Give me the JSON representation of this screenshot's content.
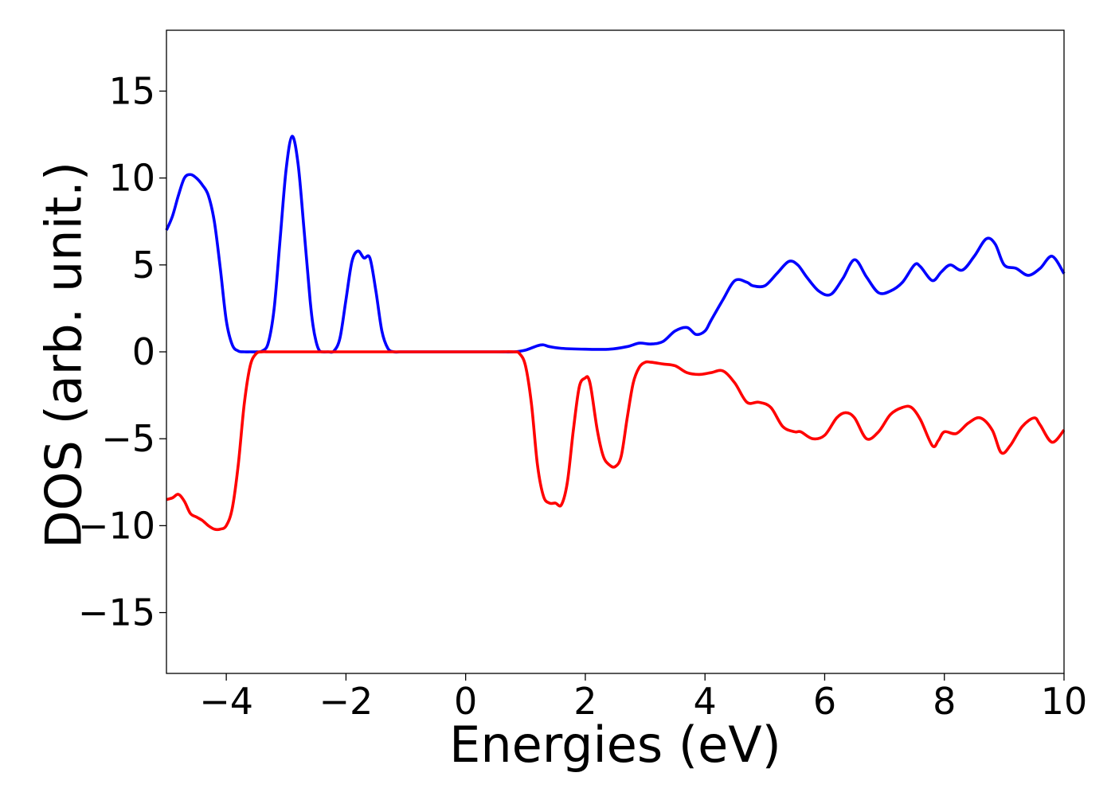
{
  "chart_data": {
    "type": "line",
    "title": "",
    "xlabel": "Energies (eV)",
    "ylabel": "DOS (arb. unit.)",
    "xlim": [
      -5,
      10
    ],
    "ylim": [
      -18.5,
      18.5
    ],
    "x_ticks": [
      -4,
      -2,
      0,
      2,
      4,
      6,
      8,
      10
    ],
    "x_tick_labels": [
      "−4",
      "−2",
      "0",
      "2",
      "4",
      "6",
      "8",
      "10"
    ],
    "y_ticks": [
      -15,
      -10,
      -5,
      0,
      5,
      10,
      15
    ],
    "y_tick_labels": [
      "−15",
      "−10",
      "−5",
      "0",
      "5",
      "10",
      "15"
    ],
    "grid": false,
    "legend": "none",
    "series": [
      {
        "color": "#0000ff",
        "x": [
          -5.0,
          -4.9,
          -4.8,
          -4.7,
          -4.6,
          -4.5,
          -4.4,
          -4.3,
          -4.2,
          -4.1,
          -4.0,
          -3.9,
          -3.8,
          -3.7,
          -3.6,
          -3.5,
          -3.4,
          -3.3,
          -3.2,
          -3.1,
          -3.0,
          -2.9,
          -2.8,
          -2.7,
          -2.6,
          -2.55,
          -2.5,
          -2.45,
          -2.4,
          -2.3,
          -2.2,
          -2.1,
          -2.0,
          -1.9,
          -1.8,
          -1.7,
          -1.6,
          -1.5,
          -1.4,
          -1.3,
          -1.2,
          -1.1,
          -1.0,
          -0.9,
          -0.8,
          -0.7,
          -0.6,
          -0.5,
          -0.4,
          0.0,
          0.5,
          0.8,
          1.0,
          1.2,
          1.3,
          1.4,
          1.6,
          2.0,
          2.4,
          2.7,
          2.9,
          3.1,
          3.3,
          3.5,
          3.7,
          3.85,
          4.0,
          4.1,
          4.3,
          4.5,
          4.7,
          4.8,
          5.0,
          5.2,
          5.4,
          5.55,
          5.7,
          5.9,
          6.1,
          6.3,
          6.5,
          6.7,
          6.9,
          7.1,
          7.3,
          7.5,
          7.6,
          7.8,
          7.95,
          8.1,
          8.3,
          8.5,
          8.7,
          8.85,
          9.0,
          9.2,
          9.4,
          9.6,
          9.8,
          10.0
        ],
        "y": [
          7.0,
          7.8,
          9.0,
          10.0,
          10.2,
          10.0,
          9.6,
          9.0,
          7.5,
          4.8,
          1.8,
          0.4,
          0.05,
          0.0,
          0.0,
          0.0,
          0.05,
          0.5,
          2.5,
          6.5,
          10.5,
          12.4,
          10.8,
          7.0,
          3.0,
          1.5,
          0.6,
          0.1,
          0.0,
          0.0,
          0.05,
          0.8,
          3.0,
          5.2,
          5.8,
          5.4,
          5.4,
          3.5,
          1.2,
          0.2,
          0.0,
          0.0,
          0.0,
          0.0,
          0.0,
          0.0,
          0.0,
          0.0,
          0.0,
          0.0,
          0.0,
          0.0,
          0.1,
          0.35,
          0.4,
          0.3,
          0.2,
          0.15,
          0.15,
          0.3,
          0.5,
          0.45,
          0.6,
          1.2,
          1.4,
          1.0,
          1.2,
          1.8,
          3.0,
          4.1,
          4.0,
          3.8,
          3.8,
          4.5,
          5.2,
          5.0,
          4.3,
          3.5,
          3.3,
          4.2,
          5.3,
          4.3,
          3.4,
          3.5,
          4.0,
          5.0,
          4.9,
          4.1,
          4.6,
          5.0,
          4.7,
          5.5,
          6.5,
          6.2,
          5.0,
          4.8,
          4.4,
          4.8,
          5.5,
          4.5
        ]
      },
      {
        "color": "#ff0000",
        "x": [
          -5.0,
          -4.9,
          -4.8,
          -4.7,
          -4.6,
          -4.5,
          -4.4,
          -4.3,
          -4.2,
          -4.1,
          -4.0,
          -3.9,
          -3.8,
          -3.7,
          -3.6,
          -3.5,
          -3.4,
          -3.3,
          -3.2,
          -3.0,
          -2.0,
          -1.0,
          0.0,
          0.5,
          0.8,
          0.9,
          1.0,
          1.1,
          1.2,
          1.3,
          1.4,
          1.5,
          1.6,
          1.7,
          1.8,
          1.9,
          2.0,
          2.05,
          2.1,
          2.2,
          2.3,
          2.4,
          2.5,
          2.6,
          2.7,
          2.8,
          2.9,
          3.0,
          3.1,
          3.3,
          3.5,
          3.7,
          3.9,
          4.1,
          4.3,
          4.5,
          4.7,
          4.9,
          5.1,
          5.3,
          5.5,
          5.6,
          5.8,
          6.0,
          6.2,
          6.35,
          6.5,
          6.7,
          6.9,
          7.1,
          7.3,
          7.45,
          7.6,
          7.8,
          7.9,
          8.0,
          8.2,
          8.4,
          8.6,
          8.8,
          8.95,
          9.1,
          9.3,
          9.5,
          9.6,
          9.8,
          10.0
        ],
        "y": [
          -8.5,
          -8.4,
          -8.2,
          -8.6,
          -9.3,
          -9.5,
          -9.7,
          -10.0,
          -10.2,
          -10.2,
          -10.0,
          -9.0,
          -6.5,
          -3.0,
          -0.8,
          -0.1,
          0.0,
          0.0,
          0.0,
          0.0,
          0.0,
          0.0,
          0.0,
          0.0,
          0.0,
          -0.1,
          -0.8,
          -3.0,
          -6.5,
          -8.3,
          -8.7,
          -8.7,
          -8.8,
          -7.5,
          -4.5,
          -2.0,
          -1.5,
          -1.5,
          -2.2,
          -4.5,
          -6.0,
          -6.5,
          -6.6,
          -6.0,
          -3.8,
          -1.8,
          -0.9,
          -0.6,
          -0.6,
          -0.7,
          -0.8,
          -1.2,
          -1.3,
          -1.2,
          -1.1,
          -1.8,
          -2.9,
          -2.9,
          -3.2,
          -4.3,
          -4.6,
          -4.6,
          -5.0,
          -4.8,
          -3.8,
          -3.5,
          -3.8,
          -5.0,
          -4.6,
          -3.6,
          -3.2,
          -3.2,
          -3.9,
          -5.4,
          -5.1,
          -4.6,
          -4.7,
          -4.1,
          -3.8,
          -4.5,
          -5.8,
          -5.4,
          -4.3,
          -3.8,
          -4.2,
          -5.2,
          -4.5
        ]
      }
    ]
  }
}
